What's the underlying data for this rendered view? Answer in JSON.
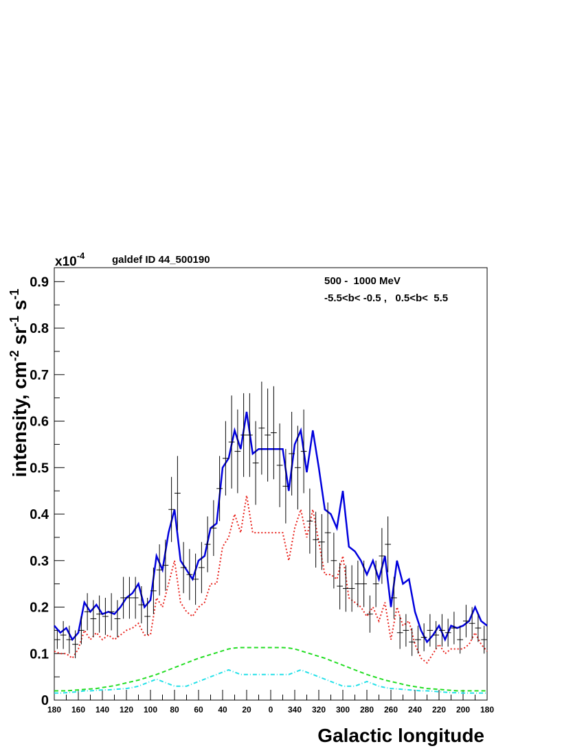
{
  "chart_data": {
    "type": "line",
    "title": "galdef ID 44_500190",
    "y_multiplier": {
      "base": "x10",
      "exponent": "-4"
    },
    "ylabel": [
      {
        "text": "intensity, cm"
      },
      {
        "sup": "-2"
      },
      {
        "text": " sr"
      },
      {
        "sup": "-1"
      },
      {
        "text": " s"
      },
      {
        "sup": "-1"
      }
    ],
    "xlabel": "Galactic longitude",
    "annotations": [
      "500 -  1000 MeV",
      "-5.5<b< -0.5 ,   0.5<b<  5.5"
    ],
    "xlim": [
      180,
      -180
    ],
    "ylim": [
      0,
      0.93
    ],
    "xticks": [
      180,
      160,
      140,
      120,
      100,
      80,
      60,
      40,
      20,
      0,
      {
        "value": -20,
        "label": "340"
      },
      {
        "value": -40,
        "label": "320"
      },
      {
        "value": -60,
        "label": "300"
      },
      {
        "value": -80,
        "label": "280"
      },
      {
        "value": -100,
        "label": "260"
      },
      {
        "value": -120,
        "label": "240"
      },
      {
        "value": -140,
        "label": "220"
      },
      {
        "value": -160,
        "label": "200"
      },
      {
        "value": -180,
        "label": "180"
      }
    ],
    "yticks": [
      0,
      0.1,
      0.2,
      0.3,
      0.4,
      0.5,
      0.6,
      0.7,
      0.8,
      0.9
    ],
    "x": [
      180,
      175,
      170,
      165,
      160,
      155,
      150,
      145,
      140,
      135,
      130,
      125,
      120,
      115,
      110,
      105,
      100,
      95,
      90,
      85,
      80,
      75,
      70,
      65,
      60,
      55,
      50,
      45,
      40,
      35,
      30,
      25,
      20,
      15,
      10,
      5,
      0,
      -5,
      -10,
      -15,
      -20,
      -25,
      -30,
      -35,
      -40,
      -45,
      -50,
      -55,
      -60,
      -65,
      -70,
      -75,
      -80,
      -85,
      -90,
      -95,
      -100,
      -105,
      -110,
      -115,
      -120,
      -125,
      -130,
      -135,
      -140,
      -145,
      -150,
      -155,
      -160,
      -165,
      -170,
      -175,
      -180
    ],
    "series": [
      {
        "color": "#0000dd",
        "style": "solid",
        "values": [
          0.16,
          0.145,
          0.155,
          0.13,
          0.145,
          0.21,
          0.19,
          0.205,
          0.185,
          0.19,
          0.185,
          0.2,
          0.22,
          0.23,
          0.25,
          0.2,
          0.215,
          0.31,
          0.28,
          0.36,
          0.41,
          0.3,
          0.28,
          0.26,
          0.3,
          0.31,
          0.37,
          0.38,
          0.5,
          0.52,
          0.58,
          0.54,
          0.62,
          0.53,
          0.54,
          0.54,
          0.54,
          0.54,
          0.54,
          0.45,
          0.55,
          0.58,
          0.49,
          0.58,
          0.5,
          0.41,
          0.4,
          0.37,
          0.45,
          0.33,
          0.32,
          0.3,
          0.27,
          0.3,
          0.26,
          0.31,
          0.2,
          0.3,
          0.25,
          0.26,
          0.19,
          0.15,
          0.125,
          0.14,
          0.16,
          0.13,
          0.16,
          0.155,
          0.16,
          0.17,
          0.2,
          0.17,
          0.16
        ]
      },
      {
        "color": "#e8201a",
        "style": "dotted",
        "values": [
          0.105,
          0.1,
          0.1,
          0.09,
          0.11,
          0.15,
          0.13,
          0.145,
          0.13,
          0.14,
          0.13,
          0.14,
          0.15,
          0.155,
          0.165,
          0.14,
          0.14,
          0.22,
          0.2,
          0.25,
          0.3,
          0.21,
          0.19,
          0.18,
          0.2,
          0.21,
          0.25,
          0.25,
          0.33,
          0.35,
          0.4,
          0.36,
          0.44,
          0.36,
          0.36,
          0.36,
          0.36,
          0.36,
          0.36,
          0.3,
          0.37,
          0.41,
          0.35,
          0.41,
          0.34,
          0.27,
          0.27,
          0.26,
          0.31,
          0.22,
          0.21,
          0.2,
          0.18,
          0.2,
          0.17,
          0.21,
          0.13,
          0.2,
          0.16,
          0.17,
          0.12,
          0.09,
          0.08,
          0.1,
          0.12,
          0.1,
          0.11,
          0.11,
          0.11,
          0.12,
          0.145,
          0.12,
          0.105
        ]
      },
      {
        "color": "#22dd22",
        "style": "dashed",
        "values": [
          0.02,
          0.02,
          0.02,
          0.021,
          0.022,
          0.023,
          0.024,
          0.025,
          0.027,
          0.029,
          0.031,
          0.034,
          0.037,
          0.04,
          0.043,
          0.047,
          0.051,
          0.055,
          0.06,
          0.065,
          0.07,
          0.075,
          0.08,
          0.085,
          0.09,
          0.094,
          0.098,
          0.102,
          0.106,
          0.11,
          0.112,
          0.113,
          0.113,
          0.113,
          0.113,
          0.113,
          0.113,
          0.113,
          0.113,
          0.112,
          0.11,
          0.106,
          0.102,
          0.098,
          0.094,
          0.09,
          0.085,
          0.08,
          0.075,
          0.07,
          0.065,
          0.06,
          0.055,
          0.051,
          0.047,
          0.043,
          0.04,
          0.037,
          0.034,
          0.031,
          0.029,
          0.027,
          0.025,
          0.024,
          0.023,
          0.022,
          0.021,
          0.02,
          0.02,
          0.02,
          0.02,
          0.02,
          0.02
        ]
      },
      {
        "color": "#22e0e8",
        "style": "dashdot",
        "values": [
          0.015,
          0.015,
          0.016,
          0.017,
          0.018,
          0.02,
          0.02,
          0.021,
          0.022,
          0.022,
          0.023,
          0.024,
          0.025,
          0.027,
          0.03,
          0.035,
          0.04,
          0.045,
          0.04,
          0.035,
          0.03,
          0.03,
          0.03,
          0.035,
          0.04,
          0.045,
          0.05,
          0.055,
          0.06,
          0.065,
          0.06,
          0.055,
          0.055,
          0.055,
          0.055,
          0.055,
          0.055,
          0.055,
          0.055,
          0.055,
          0.06,
          0.065,
          0.06,
          0.055,
          0.05,
          0.045,
          0.04,
          0.035,
          0.03,
          0.03,
          0.03,
          0.035,
          0.04,
          0.035,
          0.03,
          0.027,
          0.025,
          0.024,
          0.023,
          0.022,
          0.021,
          0.02,
          0.02,
          0.019,
          0.018,
          0.017,
          0.016,
          0.016,
          0.015,
          0.015,
          0.015,
          0.015,
          0.015
        ]
      }
    ],
    "points": {
      "color": "#000000",
      "x": [
        177.5,
        172.5,
        167.5,
        162.5,
        157.5,
        152.5,
        147.5,
        142.5,
        137.5,
        132.5,
        127.5,
        122.5,
        117.5,
        112.5,
        107.5,
        102.5,
        97.5,
        92.5,
        87.5,
        82.5,
        77.5,
        72.5,
        67.5,
        62.5,
        57.5,
        52.5,
        47.5,
        42.5,
        37.5,
        32.5,
        27.5,
        22.5,
        17.5,
        12.5,
        7.5,
        2.5,
        -2.5,
        -7.5,
        -12.5,
        -17.5,
        -22.5,
        -27.5,
        -32.5,
        -37.5,
        -42.5,
        -47.5,
        -52.5,
        -57.5,
        -62.5,
        -67.5,
        -72.5,
        -77.5,
        -82.5,
        -87.5,
        -92.5,
        -97.5,
        -102.5,
        -107.5,
        -112.5,
        -117.5,
        -122.5,
        -127.5,
        -132.5,
        -137.5,
        -142.5,
        -147.5,
        -152.5,
        -157.5,
        -162.5,
        -167.5,
        -172.5,
        -177.5
      ],
      "values": [
        0.13,
        0.14,
        0.13,
        0.12,
        0.15,
        0.19,
        0.175,
        0.185,
        0.18,
        0.19,
        0.175,
        0.22,
        0.22,
        0.22,
        0.205,
        0.18,
        0.235,
        0.28,
        0.29,
        0.41,
        0.445,
        0.285,
        0.27,
        0.26,
        0.285,
        0.335,
        0.37,
        0.455,
        0.52,
        0.555,
        0.535,
        0.57,
        0.57,
        0.51,
        0.585,
        0.57,
        0.575,
        0.505,
        0.46,
        0.53,
        0.5,
        0.535,
        0.385,
        0.345,
        0.34,
        0.36,
        0.3,
        0.245,
        0.24,
        0.24,
        0.25,
        0.25,
        0.185,
        0.25,
        0.31,
        0.335,
        0.22,
        0.145,
        0.15,
        0.125,
        0.13,
        0.135,
        0.15,
        0.14,
        0.15,
        0.145,
        0.155,
        0.13,
        0.17,
        0.165,
        0.155,
        0.13
      ],
      "errors": [
        0.02,
        0.03,
        0.03,
        0.03,
        0.03,
        0.04,
        0.04,
        0.04,
        0.04,
        0.04,
        0.04,
        0.045,
        0.045,
        0.045,
        0.04,
        0.04,
        0.05,
        0.055,
        0.055,
        0.07,
        0.08,
        0.055,
        0.055,
        0.055,
        0.055,
        0.06,
        0.06,
        0.07,
        0.08,
        0.1,
        0.09,
        0.09,
        0.09,
        0.09,
        0.1,
        0.1,
        0.1,
        0.09,
        0.08,
        0.09,
        0.09,
        0.09,
        0.07,
        0.06,
        0.06,
        0.065,
        0.06,
        0.05,
        0.05,
        0.05,
        0.05,
        0.05,
        0.04,
        0.05,
        0.06,
        0.06,
        0.045,
        0.035,
        0.035,
        0.03,
        0.03,
        0.03,
        0.035,
        0.03,
        0.035,
        0.03,
        0.035,
        0.03,
        0.035,
        0.035,
        0.03,
        0.03
      ]
    }
  }
}
